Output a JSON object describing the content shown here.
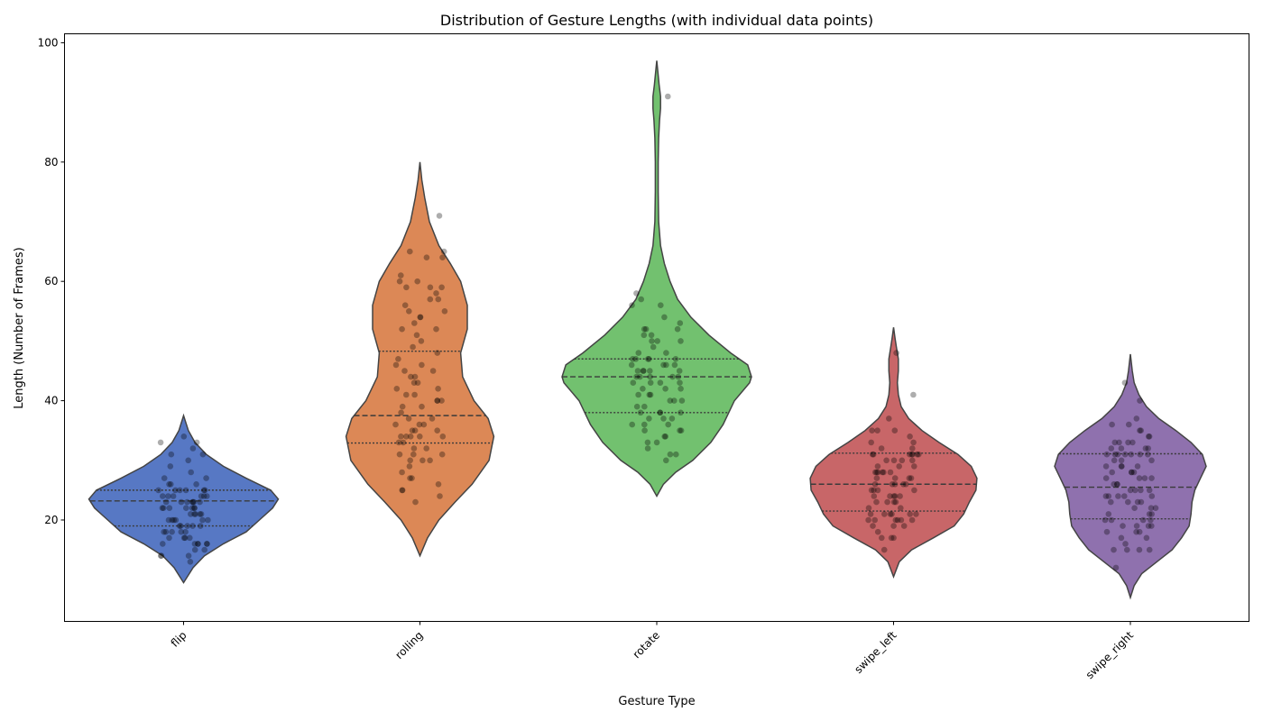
{
  "chart_data": {
    "type": "violin",
    "title": "Distribution of Gesture Lengths (with individual data points)",
    "xlabel": "Gesture Type",
    "ylabel": "Length (Number of Frames)",
    "ylim": [
      3,
      101.5
    ],
    "yticks": [
      20,
      40,
      60,
      80,
      100
    ],
    "grid": false,
    "categories": [
      "flip",
      "rolling",
      "rotate",
      "swipe_left",
      "swipe_right"
    ],
    "colors": [
      "#5778c4",
      "#dc8856",
      "#72c16f",
      "#c86668",
      "#8f71ae"
    ],
    "quartiles": [
      {
        "q1": 19,
        "median": 23.2,
        "q3": 25
      },
      {
        "q1": 32.9,
        "median": 37.5,
        "q3": 48.3
      },
      {
        "q1": 38,
        "median": 44,
        "q3": 47
      },
      {
        "q1": 21.5,
        "median": 26,
        "q3": 31.2
      },
      {
        "q1": 20.2,
        "median": 25.5,
        "q3": 31.1
      }
    ],
    "density": [
      [
        [
          9.5,
          0
        ],
        [
          12,
          0.1
        ],
        [
          14,
          0.22
        ],
        [
          16,
          0.42
        ],
        [
          18,
          0.66
        ],
        [
          20,
          0.8
        ],
        [
          22,
          0.94
        ],
        [
          23.5,
          1.0
        ],
        [
          25,
          0.92
        ],
        [
          27,
          0.66
        ],
        [
          29,
          0.42
        ],
        [
          31,
          0.24
        ],
        [
          33,
          0.12
        ],
        [
          35,
          0.05
        ],
        [
          37.5,
          0
        ]
      ],
      [
        [
          14,
          0
        ],
        [
          17,
          0.08
        ],
        [
          20,
          0.2
        ],
        [
          23,
          0.37
        ],
        [
          26,
          0.55
        ],
        [
          30,
          0.73
        ],
        [
          34,
          0.78
        ],
        [
          37,
          0.72
        ],
        [
          40,
          0.57
        ],
        [
          44,
          0.45
        ],
        [
          48,
          0.43
        ],
        [
          52,
          0.5
        ],
        [
          56,
          0.5
        ],
        [
          60,
          0.43
        ],
        [
          63,
          0.32
        ],
        [
          66,
          0.2
        ],
        [
          70,
          0.1
        ],
        [
          74,
          0.05
        ],
        [
          77,
          0.02
        ],
        [
          80,
          0
        ]
      ],
      [
        [
          24,
          0
        ],
        [
          26,
          0.07
        ],
        [
          28,
          0.2
        ],
        [
          30,
          0.38
        ],
        [
          33,
          0.57
        ],
        [
          36,
          0.7
        ],
        [
          40,
          0.82
        ],
        [
          43,
          0.98
        ],
        [
          44,
          1.0
        ],
        [
          46,
          0.96
        ],
        [
          48,
          0.78
        ],
        [
          51,
          0.55
        ],
        [
          54,
          0.36
        ],
        [
          57,
          0.22
        ],
        [
          60,
          0.14
        ],
        [
          63,
          0.08
        ],
        [
          66,
          0.04
        ],
        [
          70,
          0.02
        ],
        [
          75,
          0.015
        ],
        [
          80,
          0.015
        ],
        [
          84,
          0.02
        ],
        [
          87,
          0.03
        ],
        [
          89,
          0.04
        ],
        [
          91,
          0.04
        ],
        [
          93,
          0.025
        ],
        [
          95,
          0.012
        ],
        [
          97,
          0
        ]
      ],
      [
        [
          10.5,
          0
        ],
        [
          13,
          0.06
        ],
        [
          15,
          0.19
        ],
        [
          17,
          0.42
        ],
        [
          19,
          0.64
        ],
        [
          21,
          0.74
        ],
        [
          23,
          0.8
        ],
        [
          25,
          0.87
        ],
        [
          27,
          0.88
        ],
        [
          29,
          0.82
        ],
        [
          31,
          0.68
        ],
        [
          33,
          0.48
        ],
        [
          35,
          0.3
        ],
        [
          37,
          0.16
        ],
        [
          39,
          0.08
        ],
        [
          41,
          0.05
        ],
        [
          43,
          0.04
        ],
        [
          45,
          0.05
        ],
        [
          47,
          0.05
        ],
        [
          49,
          0.03
        ],
        [
          50.5,
          0.015
        ],
        [
          52.3,
          0
        ]
      ],
      [
        [
          7,
          0
        ],
        [
          9,
          0.04
        ],
        [
          11,
          0.12
        ],
        [
          13,
          0.28
        ],
        [
          15,
          0.44
        ],
        [
          17,
          0.54
        ],
        [
          19,
          0.62
        ],
        [
          21,
          0.64
        ],
        [
          23,
          0.65
        ],
        [
          25,
          0.68
        ],
        [
          27,
          0.74
        ],
        [
          29,
          0.8
        ],
        [
          31,
          0.76
        ],
        [
          33,
          0.64
        ],
        [
          35,
          0.48
        ],
        [
          37,
          0.3
        ],
        [
          39,
          0.17
        ],
        [
          41,
          0.09
        ],
        [
          43,
          0.04
        ],
        [
          45,
          0.02
        ],
        [
          47.8,
          0
        ]
      ]
    ],
    "points": [
      [
        33,
        34,
        33,
        32,
        31,
        30,
        29,
        28,
        27,
        27,
        26,
        26,
        26,
        25,
        25,
        25,
        25,
        25,
        25,
        24,
        24,
        24,
        24,
        24,
        24,
        23,
        23,
        23,
        23,
        23,
        23,
        23,
        22,
        22,
        22,
        22,
        22,
        22,
        22,
        21,
        21,
        21,
        21,
        21,
        20,
        20,
        20,
        20,
        20,
        20,
        19,
        19,
        19,
        19,
        19,
        18,
        18,
        18,
        18,
        18,
        17,
        17,
        17,
        17,
        16,
        16,
        16,
        16,
        16,
        16,
        15,
        15,
        14,
        14,
        14,
        13,
        31
      ],
      [
        71,
        65,
        65,
        64,
        64,
        61,
        60,
        60,
        59,
        59,
        59,
        58,
        57,
        57,
        56,
        55,
        55,
        54,
        54,
        53,
        52,
        52,
        51,
        50,
        49,
        48,
        47,
        46,
        46,
        45,
        45,
        44,
        44,
        43,
        43,
        42,
        42,
        41,
        41,
        40,
        40,
        40,
        39,
        39,
        38,
        37,
        37,
        36,
        36,
        36,
        35,
        35,
        35,
        34,
        34,
        34,
        34,
        34,
        33,
        33,
        32,
        32,
        31,
        31,
        31,
        30,
        30,
        30,
        29,
        28,
        27,
        27,
        26,
        25,
        25,
        24,
        23
      ],
      [
        91,
        58,
        57,
        56,
        56,
        54,
        53,
        52,
        52,
        52,
        51,
        51,
        50,
        50,
        50,
        49,
        48,
        48,
        47,
        47,
        47,
        47,
        47,
        46,
        46,
        46,
        46,
        45,
        45,
        45,
        45,
        45,
        44,
        44,
        44,
        44,
        44,
        43,
        43,
        43,
        43,
        42,
        42,
        42,
        41,
        41,
        41,
        40,
        40,
        40,
        39,
        39,
        38,
        38,
        38,
        38,
        37,
        37,
        37,
        36,
        36,
        36,
        35,
        35,
        35,
        34,
        34,
        33,
        33,
        32,
        31,
        31,
        30
      ],
      [
        48,
        41,
        37,
        35,
        35,
        35,
        34,
        33,
        33,
        32,
        32,
        31,
        31,
        31,
        31,
        31,
        31,
        31,
        30,
        30,
        30,
        30,
        29,
        29,
        29,
        28,
        28,
        28,
        28,
        28,
        28,
        27,
        27,
        27,
        27,
        26,
        26,
        26,
        26,
        26,
        25,
        25,
        25,
        25,
        24,
        24,
        24,
        24,
        24,
        23,
        23,
        23,
        23,
        22,
        22,
        21,
        21,
        21,
        21,
        21,
        21,
        20,
        20,
        20,
        20,
        20,
        20,
        19,
        19,
        19,
        18,
        17,
        17,
        17,
        15
      ],
      [
        43,
        40,
        37,
        36,
        36,
        35,
        35,
        34,
        34,
        33,
        33,
        33,
        33,
        32,
        32,
        32,
        32,
        31,
        31,
        31,
        31,
        31,
        31,
        31,
        30,
        30,
        30,
        29,
        29,
        29,
        29,
        28,
        28,
        28,
        28,
        27,
        27,
        27,
        27,
        26,
        26,
        26,
        25,
        25,
        25,
        25,
        24,
        24,
        24,
        24,
        24,
        23,
        23,
        23,
        23,
        22,
        22,
        22,
        21,
        21,
        21,
        20,
        20,
        20,
        20,
        19,
        19,
        19,
        19,
        18,
        18,
        18,
        17,
        17,
        16,
        15,
        15,
        15,
        15,
        12
      ]
    ]
  }
}
